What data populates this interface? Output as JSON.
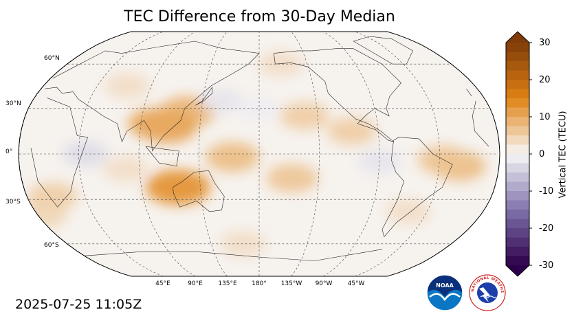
{
  "title": "TEC Difference from 30-Day Median",
  "timestamp": "2025-07-25 11:05Z",
  "map": {
    "projection": "Robinson",
    "central_longitude": 180,
    "gridlines": true,
    "lat_labels": [
      "60°N",
      "30°N",
      "0°",
      "30°S",
      "60°S"
    ],
    "lon_labels": [
      "45°E",
      "90°E",
      "135°E",
      "180°",
      "135°W",
      "90°W",
      "45°W"
    ],
    "anomaly_regions": [
      {
        "lon": 125,
        "lat": 28,
        "value": 8
      },
      {
        "lon": 110,
        "lat": 18,
        "value": 10
      },
      {
        "lon": 102,
        "lat": 20,
        "value": 9
      },
      {
        "lon": 118,
        "lat": -22,
        "value": 12
      },
      {
        "lon": 160,
        "lat": -2,
        "value": 7
      },
      {
        "lon": 205,
        "lat": -16,
        "value": 6
      },
      {
        "lon": 215,
        "lat": 25,
        "value": 5
      },
      {
        "lon": 250,
        "lat": 15,
        "value": 5
      },
      {
        "lon": 330,
        "lat": -8,
        "value": 7
      },
      {
        "lon": 318,
        "lat": -4,
        "value": 6
      },
      {
        "lon": 20,
        "lat": -28,
        "value": 5
      },
      {
        "lon": 5,
        "lat": -40,
        "value": 4
      },
      {
        "lon": 200,
        "lat": 60,
        "value": 3
      },
      {
        "lon": 70,
        "lat": 45,
        "value": 3
      },
      {
        "lon": 80,
        "lat": -10,
        "value": 3
      },
      {
        "lon": 165,
        "lat": -60,
        "value": 3
      },
      {
        "lon": 300,
        "lat": -38,
        "value": 3
      },
      {
        "lon": 150,
        "lat": 35,
        "value": -2
      },
      {
        "lon": 270,
        "lat": -5,
        "value": -2
      },
      {
        "lon": 50,
        "lat": 0,
        "value": -3
      },
      {
        "lon": 180,
        "lat": 30,
        "value": -1
      }
    ]
  },
  "colorbar": {
    "label": "Vertical TEC (TECU)",
    "min": -30,
    "max": 30,
    "ticks": [
      "30",
      "20",
      "10",
      "0",
      "-10",
      "-20",
      "-30"
    ],
    "colors": {
      "neg_max": "#2d004b",
      "neg_mid": "#8073ac",
      "neutral": "#f7f7f7",
      "pos_mid": "#e08214",
      "pos_max": "#7f3b08"
    }
  },
  "logos": {
    "noaa_text": "NOAA",
    "nws_text": "NATIONAL WEATHER SERVICE"
  }
}
